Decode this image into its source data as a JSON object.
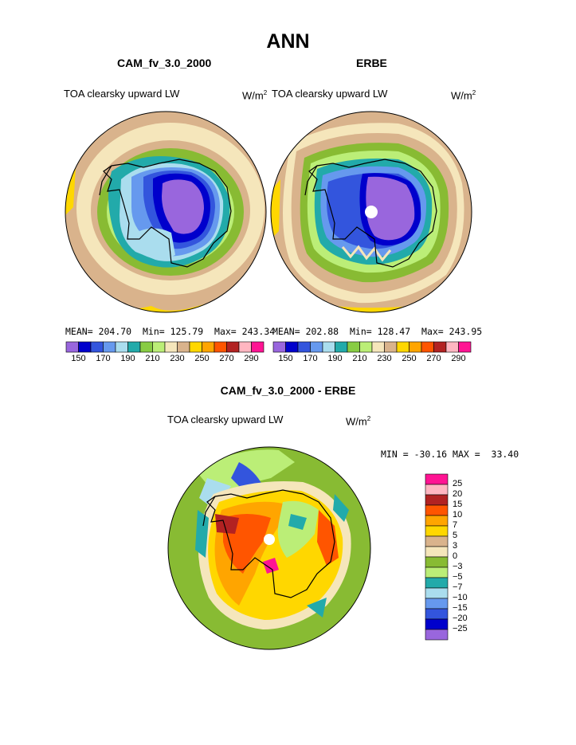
{
  "figure": {
    "title": "ANN",
    "panels": [
      {
        "title": "CAM_fv_3.0_2000",
        "variable": "TOA clearsky upward LW",
        "units_base": "W/m",
        "units_exp": "2",
        "stats": {
          "mean_label": "MEAN=",
          "mean": "204.70",
          "min_label": "Min=",
          "min": "125.79",
          "max_label": "Max=",
          "max": "243.34"
        }
      },
      {
        "title": "ERBE",
        "variable": "TOA clearsky upward LW",
        "units_base": "W/m",
        "units_exp": "2",
        "stats": {
          "mean_label": "MEAN=",
          "mean": "202.88",
          "min_label": "Min=",
          "min": "128.47",
          "max_label": "Max=",
          "max": "243.95"
        }
      }
    ],
    "diff_panel": {
      "title": "CAM_fv_3.0_2000 - ERBE",
      "variable": "TOA clearsky upward LW",
      "units_base": "W/m",
      "units_exp": "2",
      "min_label": "MIN =",
      "min": "-30.16",
      "max_label": "MAX =",
      "max": "33.40"
    }
  },
  "colorbar_abs": {
    "colors": [
      "#9966dd",
      "#0000cc",
      "#3355dd",
      "#6699ee",
      "#aaddee",
      "#22aaaa",
      "#88cc44",
      "#bbee77",
      "#f5e6bb",
      "#d9b38c",
      "#ffd700",
      "#ffa500",
      "#ff5500",
      "#b22222",
      "#ffb6c1",
      "#ff1493"
    ],
    "labels": [
      "150",
      "170",
      "190",
      "210",
      "230",
      "250",
      "270",
      "290"
    ]
  },
  "colorbar_diff": {
    "colors": [
      "#ff1493",
      "#ffb6c1",
      "#b22222",
      "#ff5500",
      "#ffa500",
      "#ffd700",
      "#d9b38c",
      "#f5e6bb",
      "#88bb33",
      "#bbee77",
      "#22aaaa",
      "#aaddee",
      "#6699ee",
      "#3355dd",
      "#0000cc",
      "#9966dd"
    ],
    "labels": [
      "25",
      "20",
      "15",
      "10",
      "7",
      "5",
      "3",
      "0",
      "−3",
      "−5",
      "−7",
      "−10",
      "−15",
      "−20",
      "−25"
    ]
  }
}
